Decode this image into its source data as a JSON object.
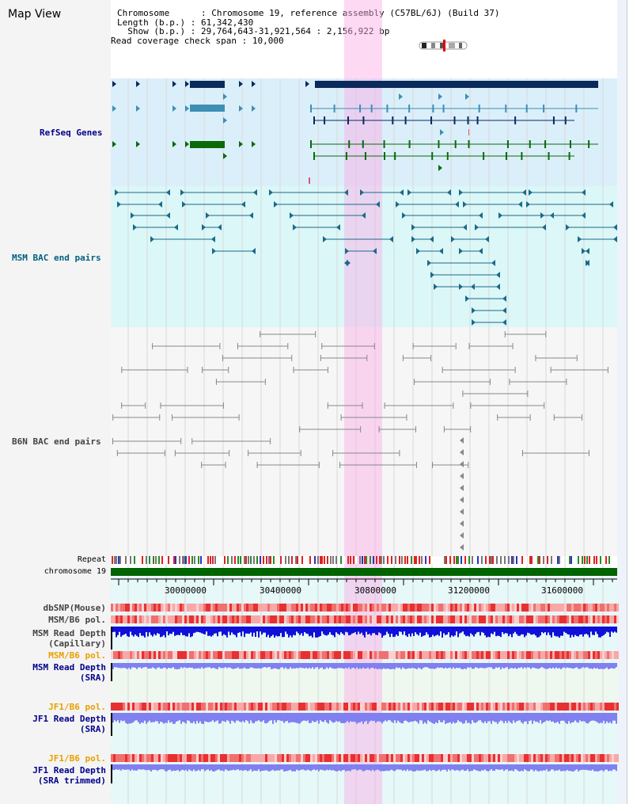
{
  "map_title": "Map View",
  "info": {
    "chromosome_label": "Chromosome",
    "chromosome_value": "Chromosome 19, reference assembly (C57BL/6J) (Build 37)",
    "length_label": "Length (b.p.)",
    "length_value": "61,342,430",
    "show_label": "Show (b.p.)",
    "show_value": "29,764,643-31,921,564 : 2,156,922 bp",
    "coverage_label": "Read coverage check span",
    "coverage_value": "10,000"
  },
  "tracks": {
    "refseq": "RefSeq Genes",
    "msm_bac": "MSM BAC end pairs",
    "b6n_bac": "B6N BAC end pairs",
    "repeat": "Repeat",
    "chromosome": "chromosome 19",
    "dbsnp": "dbSNP(Mouse)",
    "msm_b6_pol_1": "MSM/B6 pol.",
    "msm_depth_cap_1": "MSM Read Depth",
    "msm_depth_cap_2": "(Capillary)",
    "msm_b6_pol_2": "MSM/B6 pol.",
    "msm_depth_sra_1": "MSM Read Depth",
    "msm_depth_sra_2": "(SRA)",
    "jf1_b6_pol_1": "JF1/B6 pol.",
    "jf1_depth_sra_1": "JF1 Read Depth",
    "jf1_depth_sra_2": "(SRA)",
    "jf1_b6_pol_2": "JF1/B6 pol.",
    "jf1_depth_trim_1": "JF1 Read Depth",
    "jf1_depth_trim_2": "(SRA trimmed)"
  },
  "axis": {
    "ticks": [
      "30000000",
      "30400000",
      "30800000",
      "31200000",
      "31600000"
    ]
  },
  "colors": {
    "refseq_bg": "#dbeffa",
    "msm_bg": "#dcf7f7",
    "refseq_dark": "#0a2a5c",
    "refseq_mid": "#3d8fb5",
    "refseq_green": "#0a6b0a",
    "msm_pair": "#1a6a8a",
    "b6n_pair": "#888888",
    "chromosome_bar": "#006400",
    "depth_blue": "#1010d8",
    "depth_lite": "#8080f0",
    "label_blue": "#00008b",
    "label_gold": "#e8a000",
    "label_teal": "#006080"
  }
}
